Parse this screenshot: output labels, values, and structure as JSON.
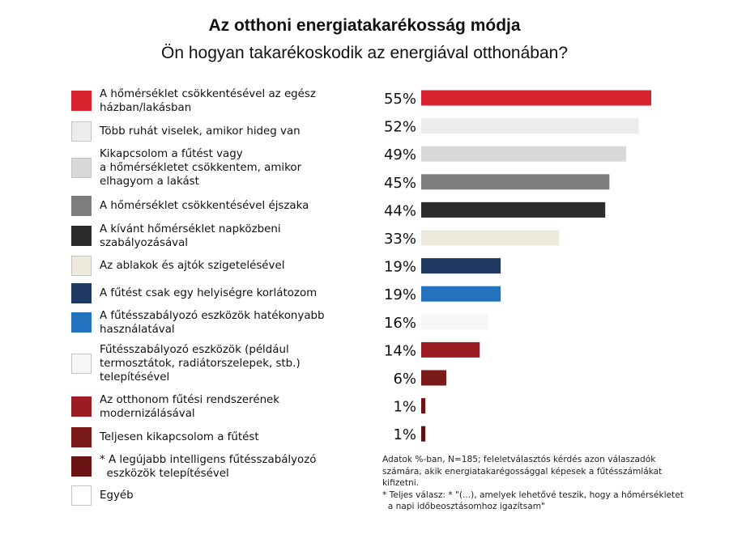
{
  "chart_data": {
    "type": "bar",
    "orientation": "horizontal",
    "title": "Az otthoni energiatakarékosság módja",
    "subtitle": "Ön hogyan takarékoskodik az energiával otthonában?",
    "value_suffix": "%",
    "xlim": [
      0,
      55
    ],
    "grid": false,
    "legend_position": "left",
    "categories": [
      "A hőmérséklet csökkentésével az egész házban/lakásban",
      "Több ruhát viselek, amikor hideg van",
      "Kikapcsolom a fűtést vagy a hőmérsékletet csökkentem, amikor elhagyom a lakást",
      "A hőmérséklet csökkentésével éjszaka",
      "A kívánt hőmérséklet napközbeni szabályozásával",
      "Az ablakok és ajtók szigetelésével",
      "A fűtést csak egy helyiségre korlátozom",
      "A fűtésszabályozó eszközök hatékonyabb használatával",
      "Fűtésszabályozó eszközök (például termosztátok, radiátorszelepek, stb.) telepítésével",
      "Az otthonom fűtési rendszerének modernizálásával",
      "Teljesen kikapcsolom a fűtést",
      "* A legújabb intelligens fűtésszabályozó eszközök telepítésével",
      "Egyéb"
    ],
    "values": [
      55,
      52,
      49,
      45,
      44,
      33,
      19,
      19,
      16,
      14,
      6,
      1,
      1
    ],
    "colors": [
      "#d9232e",
      "#ececec",
      "#d8d8d8",
      "#7d7d7d",
      "#2b2b2b",
      "#eeeadb",
      "#1f3a63",
      "#2272bd",
      "#f6f6f6",
      "#9b1c22",
      "#7a1a1a",
      "#6a1414",
      "#ffffff"
    ],
    "bar_colors": [
      "#d9232e",
      "#ececec",
      "#d8d8d8",
      "#7d7d7d",
      "#2b2b2b",
      "#eeeadb",
      "#1f3a63",
      "#2272bd",
      "#f6f6f6",
      "#9b1c22",
      "#7a1a1a",
      "#6a1414",
      "#5a1212"
    ],
    "legend_labels": [
      [
        "A hőmérséklet csökkentésével az egész",
        "házban/lakásban"
      ],
      [
        "Több ruhát viselek, amikor hideg van"
      ],
      [
        "Kikapcsolom a fűtést vagy",
        "a hőmérsékletet csökkentem, amikor",
        "elhagyom a lakást"
      ],
      [
        "A hőmérséklet csökkentésével éjszaka"
      ],
      [
        "A kívánt hőmérséklet napközbeni",
        "szabályozásával"
      ],
      [
        "Az ablakok és ajtók szigetelésével"
      ],
      [
        "A fűtést csak egy helyiségre korlátozom"
      ],
      [
        "A fűtésszabályozó eszközök hatékonyabb",
        "használatával"
      ],
      [
        "Fűtésszabályozó eszközök (például",
        "termosztátok, radiátorszelepek, stb.)",
        "telepítésével"
      ],
      [
        "Az otthonom fűtési rendszerének",
        "modernizálásával"
      ],
      [
        "Teljesen kikapcsolom a fűtést"
      ],
      [
        "* A legújabb intelligens fűtésszabályozó",
        "  eszközök telepítésével"
      ],
      [
        "Egyéb"
      ]
    ],
    "footnote": [
      "Adatok %-ban, N=185; feleletválasztós kérdés azon válaszadók",
      "számára, akik energiatakarégossággal képesek a fűtésszámlákat",
      "kifizetni.",
      "* Teljes válasz: * \"(...), amelyek lehetővé teszik, hogy a hőmérsékletet",
      "  a napi időbeosztásomhoz igazítsam\""
    ]
  }
}
